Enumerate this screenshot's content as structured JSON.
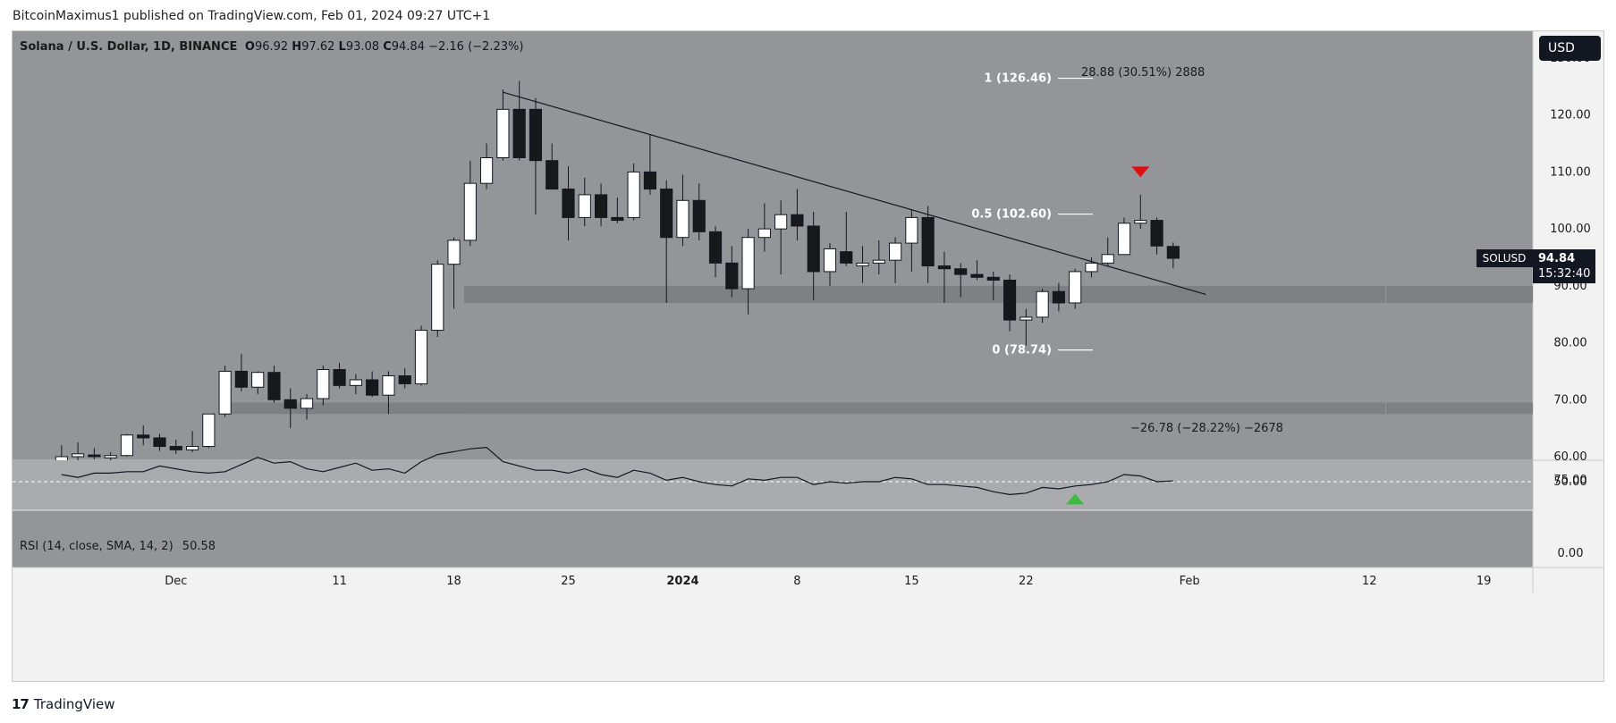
{
  "publisher_line": "BitcoinMaximus1 published on TradingView.com, Feb 01, 2024 09:27 UTC+1",
  "header": {
    "symbol": "Solana / U.S. Dollar, 1D, BINANCE",
    "o_label": "O",
    "o_value": "96.92",
    "h_label": "H",
    "h_value": "97.62",
    "l_label": "L",
    "l_value": "93.08",
    "c_label": "C",
    "c_value": "94.84",
    "change": "−2.16 (−2.23%)"
  },
  "currency_button": "USD",
  "rsi_header": {
    "label": "RSI (14, close, SMA, 14, 2)",
    "value": "50.58"
  },
  "brand": {
    "logo": "17",
    "name": "TradingView"
  },
  "colors": {
    "chart_bg": "#939599",
    "rsi_bg": "#939599",
    "rsi_band": "#a9abaf",
    "zone": "#7e8084",
    "bull": "#ffffff",
    "bear": "#16181c",
    "sell_signal": "#e01010",
    "buy_signal": "#3dbb3d"
  },
  "chart_data": [
    {
      "type": "candlestick",
      "title": "Solana / U.S. Dollar, 1D, BINANCE",
      "price_axis": {
        "range": [
          60,
          130
        ],
        "ticks": [
          "60.00",
          "70.00",
          "80.00",
          "90.00",
          "100.00",
          "110.00",
          "120.00",
          "130.00"
        ]
      },
      "x_axis": {
        "range": [
          "2023-11-21",
          "2024-02-22"
        ],
        "ticks": [
          {
            "date": "2023-12-01",
            "label": "Dec"
          },
          {
            "date": "2023-12-11",
            "label": "11"
          },
          {
            "date": "2023-12-18",
            "label": "18"
          },
          {
            "date": "2023-12-25",
            "label": "25"
          },
          {
            "date": "2024-01-01",
            "label": "2024"
          },
          {
            "date": "2024-01-08",
            "label": "8"
          },
          {
            "date": "2024-01-15",
            "label": "15"
          },
          {
            "date": "2024-01-22",
            "label": "22"
          },
          {
            "date": "2024-02-01",
            "label": "Feb"
          },
          {
            "date": "2024-02-12",
            "label": "12"
          },
          {
            "date": "2024-02-19",
            "label": "19"
          }
        ]
      },
      "candles": [
        {
          "date": "2023-11-24",
          "o": 59.0,
          "h": 62.0,
          "l": 58.0,
          "c": 60.0
        },
        {
          "date": "2023-11-25",
          "o": 60.0,
          "h": 62.5,
          "l": 59.0,
          "c": 60.5
        },
        {
          "date": "2023-11-26",
          "o": 60.3,
          "h": 61.5,
          "l": 59.5,
          "c": 60.0
        },
        {
          "date": "2023-11-27",
          "o": 59.8,
          "h": 60.8,
          "l": 58.5,
          "c": 60.2
        },
        {
          "date": "2023-11-28",
          "o": 60.2,
          "h": 64.0,
          "l": 60.0,
          "c": 63.8
        },
        {
          "date": "2023-11-29",
          "o": 63.8,
          "h": 65.5,
          "l": 62.0,
          "c": 63.3
        },
        {
          "date": "2023-11-30",
          "o": 63.3,
          "h": 64.0,
          "l": 61.0,
          "c": 61.8
        },
        {
          "date": "2023-12-01",
          "o": 61.8,
          "h": 63.0,
          "l": 60.5,
          "c": 61.2
        },
        {
          "date": "2023-12-02",
          "o": 61.2,
          "h": 64.5,
          "l": 60.8,
          "c": 61.8
        },
        {
          "date": "2023-12-03",
          "o": 61.8,
          "h": 67.0,
          "l": 61.5,
          "c": 67.5
        },
        {
          "date": "2023-12-04",
          "o": 67.5,
          "h": 76.0,
          "l": 67.0,
          "c": 75.0
        },
        {
          "date": "2023-12-05",
          "o": 75.0,
          "h": 78.0,
          "l": 71.5,
          "c": 72.2
        },
        {
          "date": "2023-12-06",
          "o": 72.2,
          "h": 75.0,
          "l": 71.0,
          "c": 74.8
        },
        {
          "date": "2023-12-07",
          "o": 74.8,
          "h": 76.0,
          "l": 69.5,
          "c": 70.0
        },
        {
          "date": "2023-12-08",
          "o": 70.0,
          "h": 72.0,
          "l": 65.0,
          "c": 68.5
        },
        {
          "date": "2023-12-09",
          "o": 68.5,
          "h": 71.0,
          "l": 66.5,
          "c": 70.2
        },
        {
          "date": "2023-12-10",
          "o": 70.2,
          "h": 76.0,
          "l": 69.0,
          "c": 75.3
        },
        {
          "date": "2023-12-11",
          "o": 75.3,
          "h": 76.5,
          "l": 72.0,
          "c": 72.5
        },
        {
          "date": "2023-12-12",
          "o": 72.5,
          "h": 74.5,
          "l": 71.0,
          "c": 73.5
        },
        {
          "date": "2023-12-13",
          "o": 73.5,
          "h": 75.0,
          "l": 70.5,
          "c": 70.8
        },
        {
          "date": "2023-12-14",
          "o": 70.8,
          "h": 75.0,
          "l": 67.5,
          "c": 74.2
        },
        {
          "date": "2023-12-15",
          "o": 74.2,
          "h": 75.5,
          "l": 72.0,
          "c": 72.8
        },
        {
          "date": "2023-12-16",
          "o": 72.8,
          "h": 83.0,
          "l": 72.5,
          "c": 82.2
        },
        {
          "date": "2023-12-17",
          "o": 82.2,
          "h": 94.5,
          "l": 81.0,
          "c": 93.8
        },
        {
          "date": "2023-12-18",
          "o": 93.8,
          "h": 98.5,
          "l": 86.0,
          "c": 98.0
        },
        {
          "date": "2023-12-19",
          "o": 98.0,
          "h": 112.0,
          "l": 97.0,
          "c": 108.0
        },
        {
          "date": "2023-12-20",
          "o": 108.0,
          "h": 115.0,
          "l": 107.0,
          "c": 112.5
        },
        {
          "date": "2023-12-21",
          "o": 112.5,
          "h": 124.5,
          "l": 112.0,
          "c": 121.0
        },
        {
          "date": "2023-12-22",
          "o": 121.0,
          "h": 126.0,
          "l": 112.0,
          "c": 112.5
        },
        {
          "date": "2023-12-23",
          "o": 121.0,
          "h": 123.0,
          "l": 102.5,
          "c": 112.0
        },
        {
          "date": "2023-12-24",
          "o": 112.0,
          "h": 115.0,
          "l": 107.0,
          "c": 107.0
        },
        {
          "date": "2023-12-25",
          "o": 107.0,
          "h": 111.0,
          "l": 98.0,
          "c": 102.0
        },
        {
          "date": "2023-12-26",
          "o": 102.0,
          "h": 109.0,
          "l": 100.5,
          "c": 106.0
        },
        {
          "date": "2023-12-27",
          "o": 106.0,
          "h": 108.0,
          "l": 100.5,
          "c": 102.0
        },
        {
          "date": "2023-12-28",
          "o": 102.0,
          "h": 105.5,
          "l": 101.0,
          "c": 101.5
        },
        {
          "date": "2023-12-29",
          "o": 102.0,
          "h": 111.5,
          "l": 101.5,
          "c": 110.0
        },
        {
          "date": "2023-12-30",
          "o": 110.0,
          "h": 116.5,
          "l": 106.0,
          "c": 107.0
        },
        {
          "date": "2023-12-31",
          "o": 107.0,
          "h": 108.5,
          "l": 87.0,
          "c": 98.5
        },
        {
          "date": "2024-01-01",
          "o": 98.5,
          "h": 109.5,
          "l": 97.0,
          "c": 105.0
        },
        {
          "date": "2024-01-02",
          "o": 105.0,
          "h": 108.0,
          "l": 98.0,
          "c": 99.5
        },
        {
          "date": "2024-01-03",
          "o": 99.5,
          "h": 100.5,
          "l": 91.5,
          "c": 94.0
        },
        {
          "date": "2024-01-04",
          "o": 94.0,
          "h": 97.0,
          "l": 88.0,
          "c": 89.5
        },
        {
          "date": "2024-01-05",
          "o": 89.5,
          "h": 100.0,
          "l": 85.0,
          "c": 98.5
        },
        {
          "date": "2024-01-06",
          "o": 98.5,
          "h": 104.5,
          "l": 96.0,
          "c": 100.0
        },
        {
          "date": "2024-01-07",
          "o": 100.0,
          "h": 105.0,
          "l": 92.0,
          "c": 102.5
        },
        {
          "date": "2024-01-08",
          "o": 102.5,
          "h": 107.0,
          "l": 98.0,
          "c": 100.5
        },
        {
          "date": "2024-01-09",
          "o": 100.5,
          "h": 103.0,
          "l": 87.5,
          "c": 92.5
        },
        {
          "date": "2024-01-10",
          "o": 92.5,
          "h": 97.5,
          "l": 90.0,
          "c": 96.5
        },
        {
          "date": "2024-01-11",
          "o": 96.0,
          "h": 103.0,
          "l": 93.5,
          "c": 94.0
        },
        {
          "date": "2024-01-12",
          "o": 93.5,
          "h": 97.0,
          "l": 90.5,
          "c": 94.0
        },
        {
          "date": "2024-01-13",
          "o": 94.0,
          "h": 98.0,
          "l": 92.0,
          "c": 94.5
        },
        {
          "date": "2024-01-14",
          "o": 94.5,
          "h": 98.5,
          "l": 90.5,
          "c": 97.5
        },
        {
          "date": "2024-01-15",
          "o": 97.5,
          "h": 103.5,
          "l": 92.5,
          "c": 102.0
        },
        {
          "date": "2024-01-16",
          "o": 102.0,
          "h": 104.0,
          "l": 90.5,
          "c": 93.5
        },
        {
          "date": "2024-01-17",
          "o": 93.5,
          "h": 96.0,
          "l": 87.0,
          "c": 93.0
        },
        {
          "date": "2024-01-18",
          "o": 93.0,
          "h": 94.0,
          "l": 88.0,
          "c": 92.0
        },
        {
          "date": "2024-01-19",
          "o": 92.0,
          "h": 94.5,
          "l": 91.0,
          "c": 91.5
        },
        {
          "date": "2024-01-20",
          "o": 91.5,
          "h": 92.5,
          "l": 87.5,
          "c": 91.0
        },
        {
          "date": "2024-01-21",
          "o": 91.0,
          "h": 92.0,
          "l": 82.0,
          "c": 84.0
        },
        {
          "date": "2024-01-22",
          "o": 84.0,
          "h": 86.0,
          "l": 79.5,
          "c": 84.5
        },
        {
          "date": "2024-01-23",
          "o": 84.5,
          "h": 89.5,
          "l": 83.5,
          "c": 89.0
        },
        {
          "date": "2024-01-24",
          "o": 89.0,
          "h": 90.5,
          "l": 85.5,
          "c": 87.0
        },
        {
          "date": "2024-01-25",
          "o": 87.0,
          "h": 93.0,
          "l": 86.0,
          "c": 92.5
        },
        {
          "date": "2024-01-26",
          "o": 92.5,
          "h": 95.0,
          "l": 91.5,
          "c": 94.0
        },
        {
          "date": "2024-01-27",
          "o": 94.0,
          "h": 98.5,
          "l": 93.5,
          "c": 95.5
        },
        {
          "date": "2024-01-28",
          "o": 95.5,
          "h": 102.0,
          "l": 95.5,
          "c": 101.0
        },
        {
          "date": "2024-01-29",
          "o": 101.0,
          "h": 106.0,
          "l": 100.0,
          "c": 101.5
        },
        {
          "date": "2024-01-30",
          "o": 101.5,
          "h": 102.0,
          "l": 95.5,
          "c": 97.0
        },
        {
          "date": "2024-01-31",
          "o": 96.92,
          "h": 97.62,
          "l": 93.08,
          "c": 94.84
        }
      ],
      "trendline": {
        "from": [
          "2023-12-21",
          124.0
        ],
        "to": [
          "2024-02-02",
          88.5
        ]
      },
      "zones": [
        {
          "from": 87.0,
          "to": 90.0
        },
        {
          "from": 67.5,
          "to": 69.5
        }
      ],
      "fib_levels": [
        {
          "label": "1 (126.46)",
          "price": 126.46
        },
        {
          "label": "0.5 (102.60)",
          "price": 102.6
        },
        {
          "label": "0 (78.74)",
          "price": 78.74
        }
      ],
      "measures": [
        {
          "label": "28.88 (30.51%) 2888",
          "price": 127.5
        },
        {
          "label": "−26.78 (−28.22%) −2678",
          "price": 65.0
        }
      ],
      "measure_line": {
        "date": "2024-02-13",
        "from": 94.5,
        "to": 67.0
      },
      "last_price": {
        "symbol": "SOLUSD",
        "price": "94.84",
        "countdown": "15:32:40"
      },
      "signals": [
        {
          "type": "sell",
          "date": "2024-01-29",
          "price": 110.0
        },
        {
          "type": "buy",
          "date": "2024-01-25",
          "rsi": 46.0
        }
      ]
    },
    {
      "type": "line",
      "title": "RSI (14, close, SMA, 14, 2)",
      "y_axis": {
        "range": [
          0,
          100
        ],
        "ticks": [
          "0.00",
          "50.00",
          "75.00"
        ]
      },
      "bands": [
        30,
        70
      ],
      "midline": 50,
      "x": [
        "2023-11-24",
        "2023-11-25",
        "2023-11-26",
        "2023-11-27",
        "2023-11-28",
        "2023-11-29",
        "2023-11-30",
        "2023-12-01",
        "2023-12-02",
        "2023-12-03",
        "2023-12-04",
        "2023-12-05",
        "2023-12-06",
        "2023-12-07",
        "2023-12-08",
        "2023-12-09",
        "2023-12-10",
        "2023-12-11",
        "2023-12-12",
        "2023-12-13",
        "2023-12-14",
        "2023-12-15",
        "2023-12-16",
        "2023-12-17",
        "2023-12-18",
        "2023-12-19",
        "2023-12-20",
        "2023-12-21",
        "2023-12-22",
        "2023-12-23",
        "2023-12-24",
        "2023-12-25",
        "2023-12-26",
        "2023-12-27",
        "2023-12-28",
        "2023-12-29",
        "2023-12-30",
        "2023-12-31",
        "2024-01-01",
        "2024-01-02",
        "2024-01-03",
        "2024-01-04",
        "2024-01-05",
        "2024-01-06",
        "2024-01-07",
        "2024-01-08",
        "2024-01-09",
        "2024-01-10",
        "2024-01-11",
        "2024-01-12",
        "2024-01-13",
        "2024-01-14",
        "2024-01-15",
        "2024-01-16",
        "2024-01-17",
        "2024-01-18",
        "2024-01-19",
        "2024-01-20",
        "2024-01-21",
        "2024-01-22",
        "2024-01-23",
        "2024-01-24",
        "2024-01-25",
        "2024-01-26",
        "2024-01-27",
        "2024-01-28",
        "2024-01-29",
        "2024-01-30",
        "2024-01-31"
      ],
      "values": [
        55,
        53,
        56,
        56,
        57,
        57,
        61,
        59,
        57,
        56,
        57,
        62,
        67,
        63,
        64,
        59,
        57,
        60,
        63,
        58,
        59,
        56,
        64,
        69,
        71,
        73,
        74,
        64,
        61,
        58,
        58,
        56,
        59,
        55,
        53,
        58,
        56,
        51,
        53,
        50,
        48,
        47,
        52,
        51,
        53,
        53,
        48,
        50,
        49,
        50,
        50,
        53,
        52,
        48,
        48,
        47,
        46,
        43,
        41,
        42,
        46,
        45,
        47,
        48,
        50,
        55,
        54,
        50,
        50.58
      ]
    }
  ]
}
